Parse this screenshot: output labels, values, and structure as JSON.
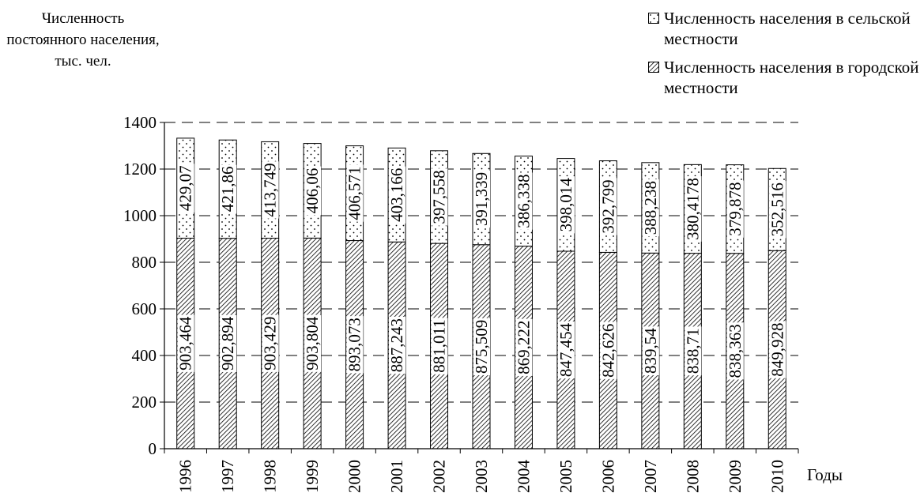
{
  "chart_data": {
    "type": "bar",
    "stacked": true,
    "ylabel": "Численность постоянного населения, тыс. чел.",
    "xlabel": "Годы",
    "categories": [
      "1996",
      "1997",
      "1998",
      "1999",
      "2000",
      "2001",
      "2002",
      "2003",
      "2004",
      "2005",
      "2006",
      "2007",
      "2008",
      "2009",
      "2010"
    ],
    "ylim": [
      0,
      1400
    ],
    "yticks": [
      0,
      200,
      400,
      600,
      800,
      1000,
      1200,
      1400
    ],
    "grid": "dashed horizontal",
    "legend_position": "top-right",
    "series": [
      {
        "name": "Численность населения в городской местности",
        "pattern": "diagonal-hatch",
        "values": [
          903.464,
          902.894,
          903.429,
          903.804,
          893.073,
          887.243,
          881.011,
          875.509,
          869.222,
          847.454,
          842.626,
          839.54,
          838.71,
          838.363,
          849.928
        ],
        "labels": [
          "903,464",
          "902,894",
          "903,429",
          "903,804",
          "893,073",
          "887,243",
          "881,011",
          "875,509",
          "869,222",
          "847,454",
          "842,626",
          "839,54",
          "838,71",
          "838,363",
          "849,928"
        ]
      },
      {
        "name": "Численность населения в сельской местности",
        "pattern": "dotted",
        "values": [
          429.07,
          421.86,
          413.749,
          406.06,
          406.571,
          403.166,
          397.558,
          391.339,
          386.338,
          398.014,
          392.799,
          388.238,
          380.4178,
          379.878,
          352.516
        ],
        "labels": [
          "429,07",
          "421,86",
          "413,749",
          "406,06",
          "406,571",
          "403,166",
          "397,558",
          "391,339",
          "386,338",
          "398,014",
          "392,799",
          "388,238",
          "380,4178",
          "379,878",
          "352,516"
        ]
      }
    ]
  }
}
